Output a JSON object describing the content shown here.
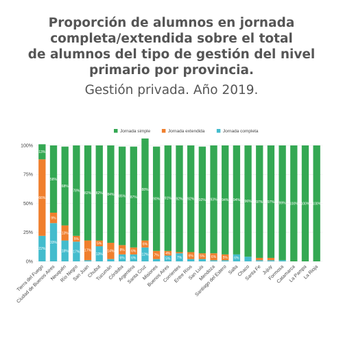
{
  "title_lines": [
    "Proporción de alumnos en jornada",
    "completa/extendida sobre el total",
    "de alumnos del tipo de gestión del nivel",
    "primario por provincia."
  ],
  "subtitle": "Gestión privada. Año 2019.",
  "chart_data": {
    "type": "bar",
    "stacked": true,
    "legend_position": "top",
    "ylim": [
      0,
      100
    ],
    "yticks": [
      "0%",
      "25%",
      "50%",
      "75%",
      "100%"
    ],
    "categories": [
      "Tierra del Fuego",
      "Ciudad de Buenos Aires",
      "Neuquén",
      "Río Negro",
      "San Juan",
      "Chubut",
      "Tucumán",
      "Córdoba",
      "Argentina",
      "Santa Cruz",
      "Misiones",
      "Buenos Aires",
      "Corrientes",
      "Entre Ríos",
      "San Luis",
      "Mendoza",
      "Santiago del Estero",
      "Salta",
      "Chaco",
      "Santa Fe",
      "Jujuy",
      "Formosa",
      "Catamarca",
      "La Pampa",
      "La Rioja"
    ],
    "series": [
      {
        "name": "Jornada completa",
        "color": "#43bccd",
        "values": [
          22,
          33,
          18,
          17,
          1,
          13,
          2,
          6,
          6,
          12,
          2,
          5,
          7,
          2,
          2,
          1,
          1,
          6,
          4,
          1,
          1,
          1,
          0,
          0,
          0
        ]
      },
      {
        "name": "Jornada extendida",
        "color": "#f07f2d",
        "values": [
          66,
          9,
          13,
          5,
          17,
          5,
          14,
          8,
          6,
          6,
          7,
          4,
          1,
          6,
          5,
          6,
          5,
          0,
          0,
          2,
          2,
          0,
          0,
          0,
          0
        ]
      },
      {
        "name": "Jornada simple",
        "color": "#34a853",
        "values": [
          13,
          58,
          68,
          78,
          82,
          82,
          84,
          85,
          87,
          88,
          90,
          91,
          92,
          92,
          92,
          93,
          94,
          94,
          96,
          97,
          97,
          99,
          100,
          100,
          100
        ]
      }
    ],
    "labels": {
      "Jornada completa": [
        "22%",
        "33%",
        "18%",
        "17%",
        "",
        "13%",
        "",
        "6%",
        "6%",
        "12%",
        "",
        "5%",
        "7%",
        "",
        "",
        "",
        "",
        "6%",
        "",
        "",
        "",
        "",
        "",
        "",
        ""
      ],
      "Jornada extendida": [
        "66%",
        "9%",
        "13%",
        "5%",
        "17%",
        "5%",
        "14%",
        "8%",
        "6%",
        "6%",
        "7%",
        "4%",
        "",
        "6%",
        "5%",
        "6%",
        "5%",
        "",
        "",
        "",
        "",
        "",
        "",
        "",
        ""
      ],
      "Jornada simple": [
        "13%",
        "58%",
        "68%",
        "78%",
        "82%",
        "82%",
        "84%",
        "85%",
        "87%",
        "88%",
        "90%",
        "91%",
        "92%",
        "92%",
        "92%",
        "93%",
        "94%",
        "94%",
        "96%",
        "97%",
        "97%",
        "99%",
        "100%",
        "100%",
        "100%"
      ]
    }
  }
}
